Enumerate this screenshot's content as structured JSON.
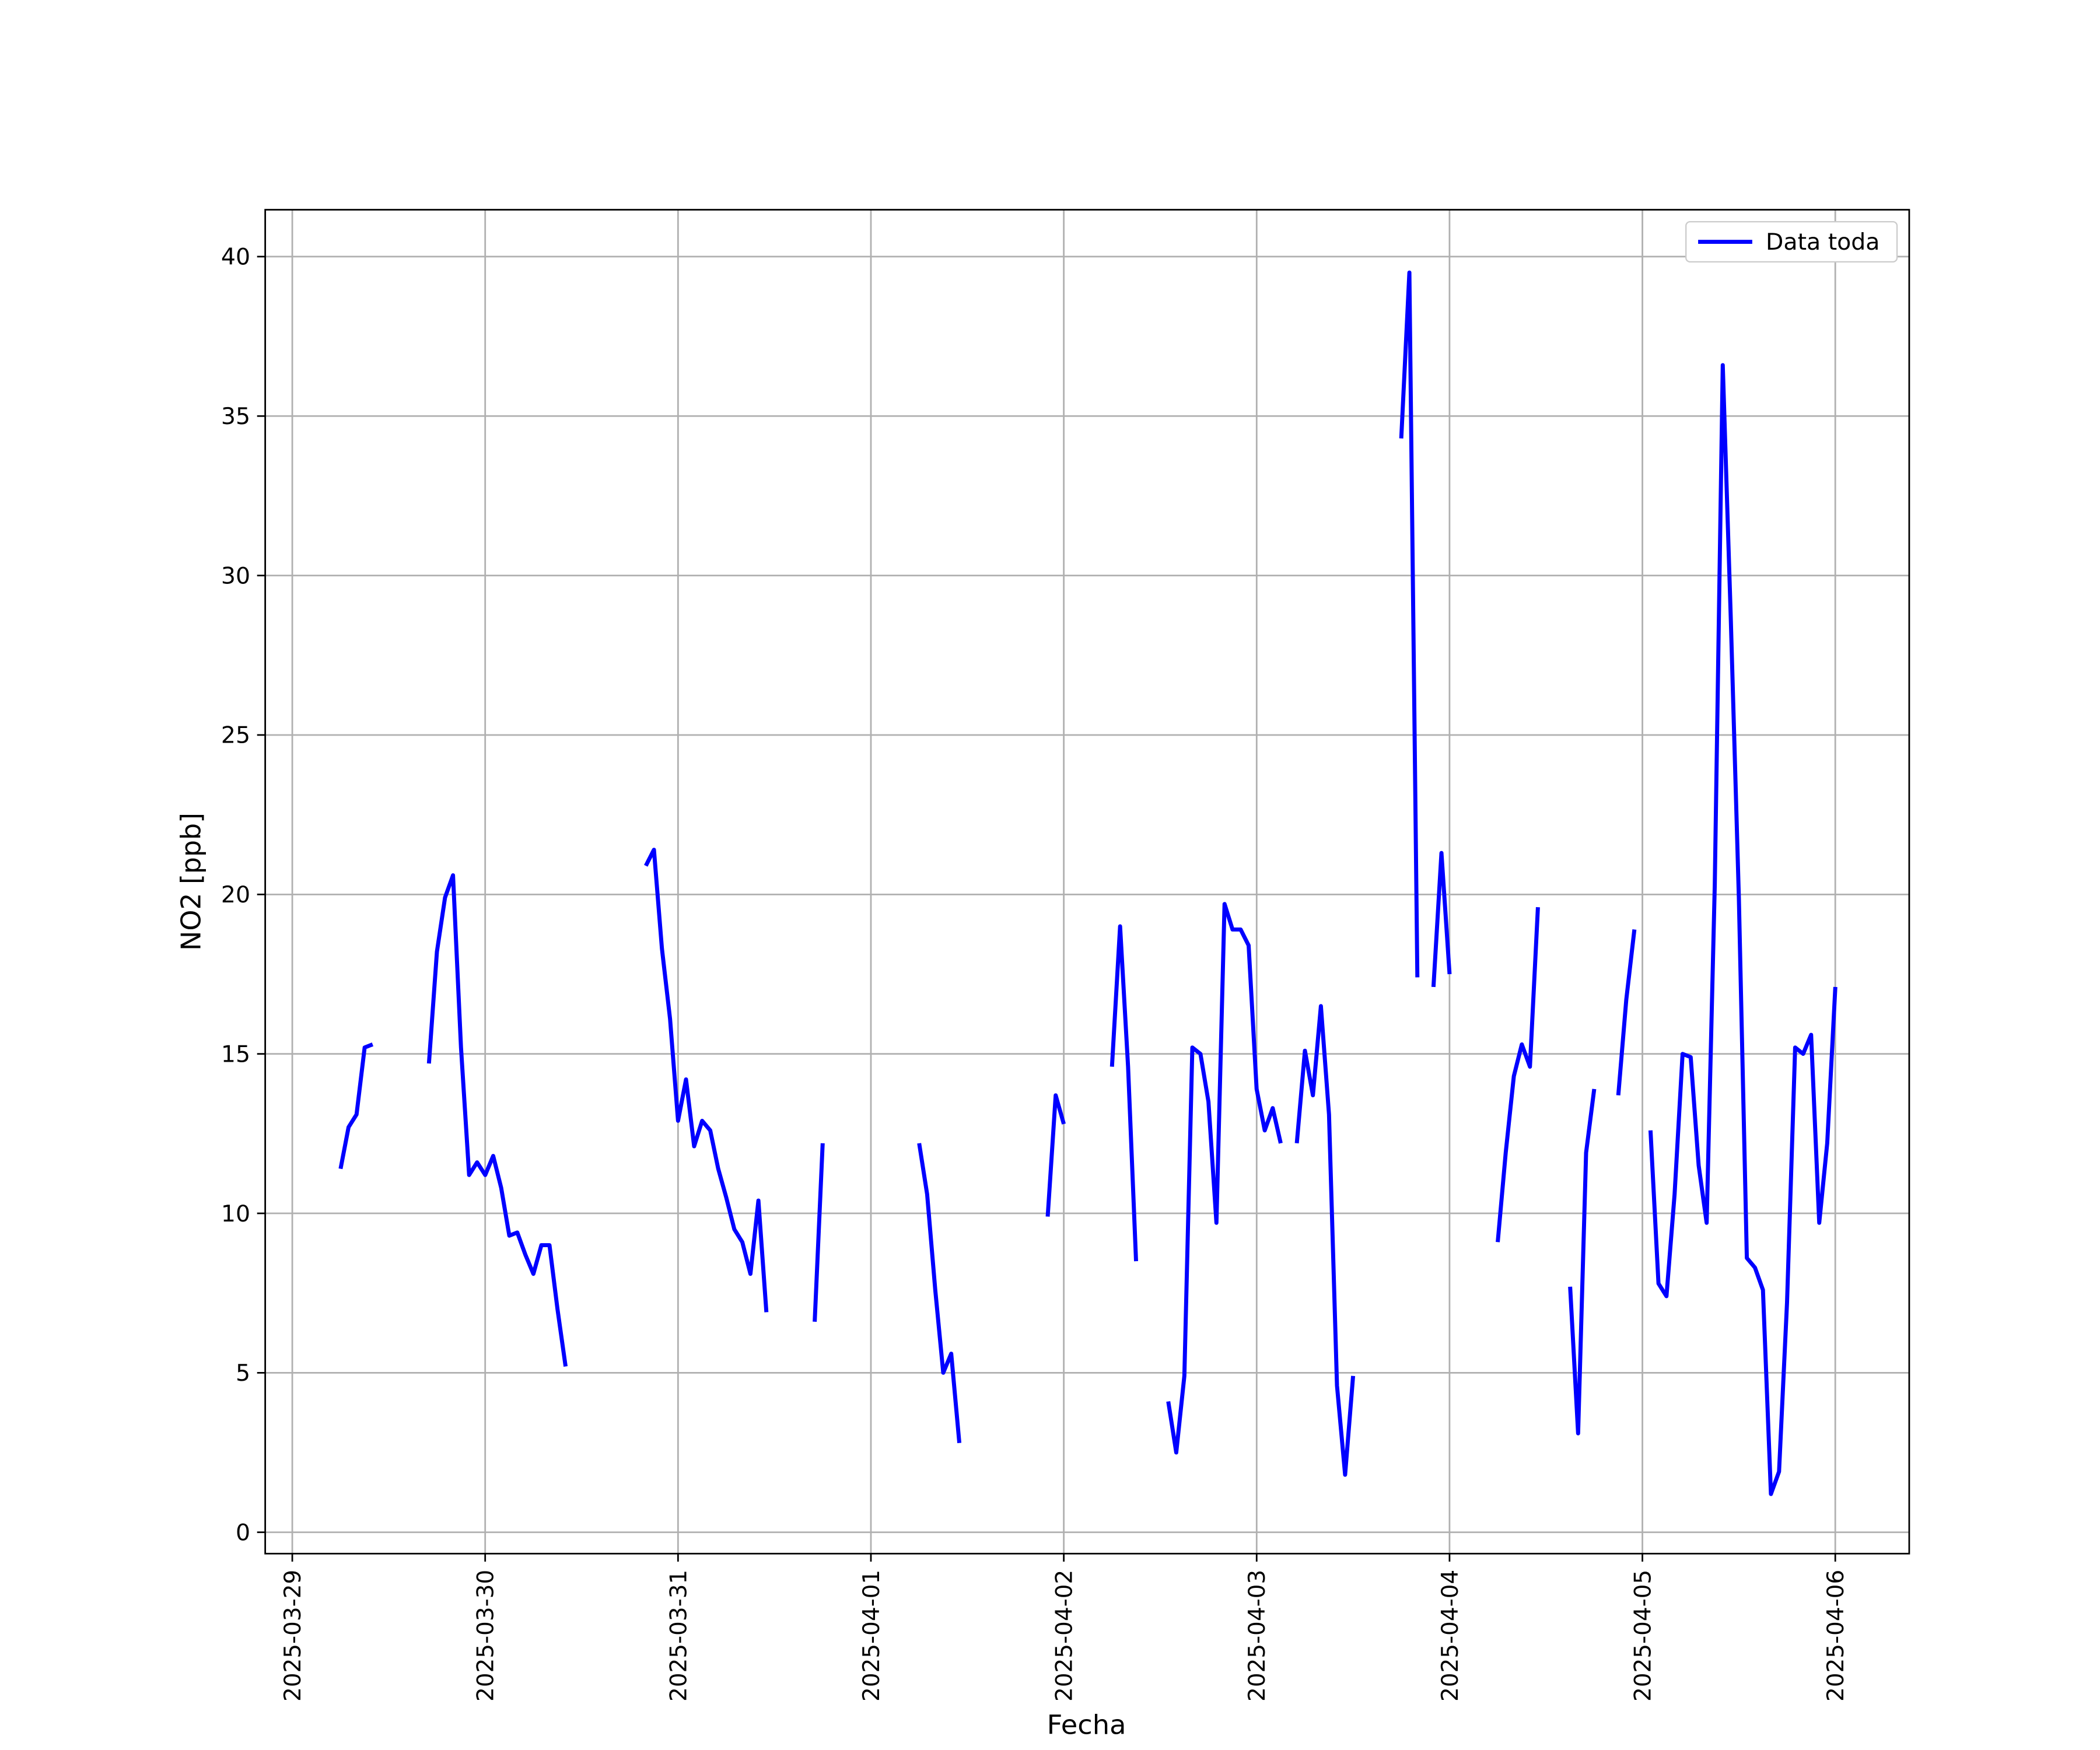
{
  "chart_data": {
    "type": "line",
    "xlabel": "Fecha",
    "ylabel": "NO2 [ppb]",
    "x": [
      6,
      7,
      8,
      9,
      10,
      null,
      17,
      18,
      19,
      20,
      21,
      22,
      23,
      24,
      25,
      26,
      27,
      28,
      29,
      30,
      31,
      32,
      33,
      34,
      null,
      44,
      45,
      46,
      47,
      48,
      49,
      50,
      51,
      52,
      53,
      54,
      55,
      56,
      57,
      58,
      59,
      null,
      65,
      66,
      null,
      78,
      79,
      80,
      81,
      82,
      83,
      null,
      94,
      95,
      96,
      null,
      102,
      103,
      104,
      105,
      null,
      109,
      110,
      111,
      112,
      113,
      114,
      115,
      116,
      117,
      118,
      119,
      120,
      121,
      122,
      123,
      null,
      125,
      126,
      127,
      128,
      129,
      130,
      131,
      132,
      null,
      138,
      139,
      140,
      null,
      142,
      143,
      144,
      null,
      150,
      151,
      152,
      153,
      154,
      155,
      null,
      159,
      160,
      161,
      162,
      null,
      165,
      166,
      167,
      null,
      169,
      170,
      171,
      172,
      173,
      174,
      175,
      176,
      177,
      178,
      179,
      180,
      181,
      182,
      183,
      184,
      185,
      186,
      187,
      188,
      189,
      190,
      191,
      192
    ],
    "series": [
      {
        "name": "Data toda",
        "color": "#0000ff",
        "values": [
          11.4,
          12.7,
          13.1,
          15.2,
          15.3,
          null,
          14.7,
          18.2,
          19.9,
          20.6,
          15.2,
          11.2,
          11.6,
          11.2,
          11.8,
          10.8,
          9.3,
          9.4,
          8.7,
          8.1,
          9.0,
          9.0,
          7.0,
          5.2,
          null,
          20.9,
          21.4,
          18.3,
          16.1,
          12.9,
          14.2,
          12.1,
          12.9,
          12.6,
          11.4,
          10.5,
          9.5,
          9.1,
          8.1,
          10.4,
          6.9,
          null,
          6.6,
          12.2,
          null,
          12.2,
          10.6,
          7.6,
          5.0,
          5.6,
          2.8,
          null,
          9.9,
          13.7,
          12.8,
          null,
          14.6,
          19.0,
          14.6,
          8.5,
          null,
          4.1,
          2.5,
          4.9,
          15.2,
          15.0,
          13.5,
          9.7,
          19.7,
          18.9,
          18.9,
          18.4,
          13.9,
          12.6,
          13.3,
          12.2,
          null,
          12.2,
          15.1,
          13.7,
          16.5,
          13.1,
          4.6,
          1.8,
          4.9,
          null,
          34.3,
          39.5,
          17.4,
          null,
          17.1,
          21.3,
          17.5,
          null,
          9.1,
          11.9,
          14.3,
          15.3,
          14.6,
          19.6,
          null,
          7.7,
          3.1,
          11.9,
          13.9,
          null,
          13.7,
          16.7,
          18.9,
          null,
          12.6,
          7.8,
          7.4,
          10.6,
          15.0,
          14.9,
          11.5,
          9.7,
          20.3,
          36.6,
          28.7,
          19.9,
          8.6,
          8.3,
          7.6,
          1.2,
          1.9,
          7.2,
          15.2,
          15.0,
          15.6,
          9.7,
          12.2,
          17.1
        ]
      }
    ],
    "xlim": [
      -3.37,
      201.2
    ],
    "xticks": [
      {
        "value": 0,
        "label": "2025-03-29"
      },
      {
        "value": 24,
        "label": "2025-03-30"
      },
      {
        "value": 48,
        "label": "2025-03-31"
      },
      {
        "value": 72,
        "label": "2025-04-01"
      },
      {
        "value": 96,
        "label": "2025-04-02"
      },
      {
        "value": 120,
        "label": "2025-04-03"
      },
      {
        "value": 144,
        "label": "2025-04-04"
      },
      {
        "value": 168,
        "label": "2025-04-05"
      },
      {
        "value": 192,
        "label": "2025-04-06"
      }
    ],
    "ylim": [
      -0.67,
      41.47
    ],
    "yticks": [
      0,
      5,
      10,
      15,
      20,
      25,
      30,
      35,
      40
    ],
    "grid": true,
    "legend": "upper right"
  }
}
